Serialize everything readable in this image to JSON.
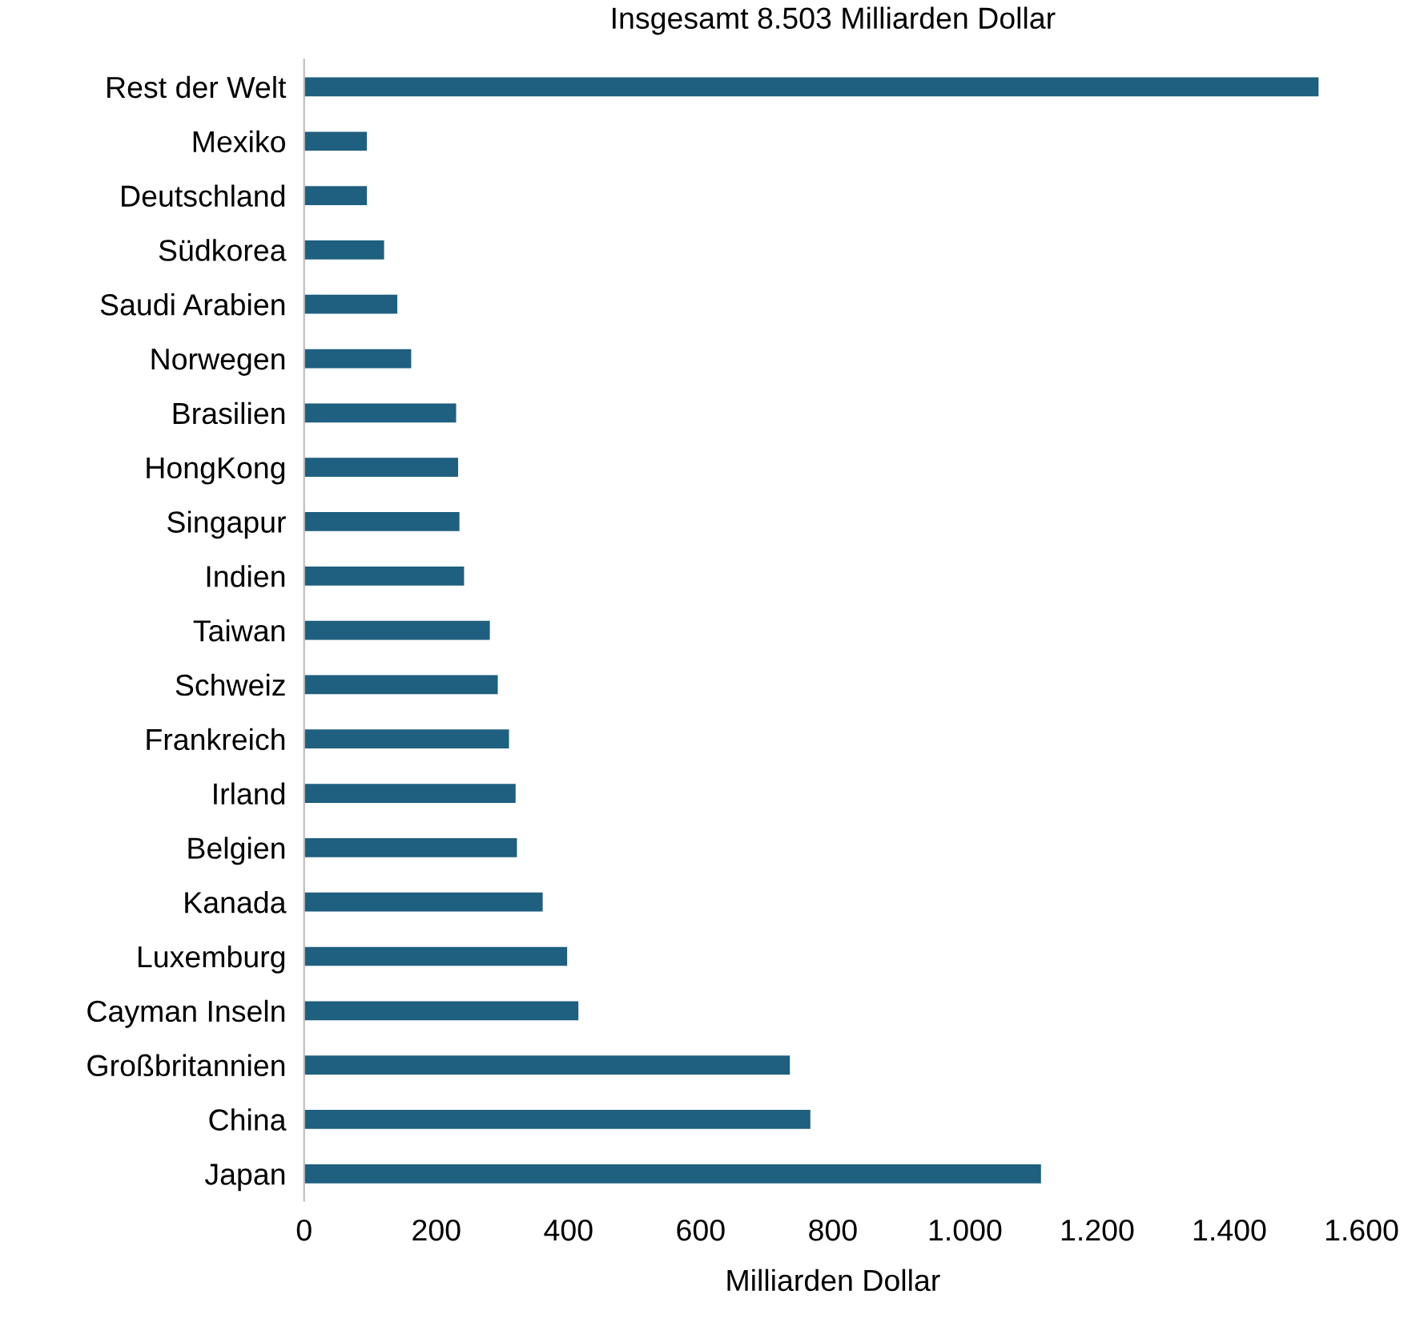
{
  "chart_data": {
    "type": "bar",
    "orientation": "horizontal",
    "title": "Insgesamt 8.503 Milliarden Dollar",
    "xlabel": "Milliarden Dollar",
    "categories": [
      "Rest der Welt",
      "Mexiko",
      "Deutschland",
      "Südkorea",
      "Saudi Arabien",
      "Norwegen",
      "Brasilien",
      "HongKong",
      "Singapur",
      "Indien",
      "Taiwan",
      "Schweiz",
      "Frankreich",
      "Irland",
      "Belgien",
      "Kanada",
      "Luxemburg",
      "Cayman Inseln",
      "Großbritannien",
      "China",
      "Japan"
    ],
    "values": [
      1535,
      95,
      95,
      121,
      141,
      162,
      230,
      233,
      235,
      242,
      281,
      293,
      310,
      320,
      322,
      361,
      398,
      415,
      735,
      766,
      1115
    ],
    "color": "#1f5f7f",
    "xlim": [
      0,
      1600
    ],
    "xticks": [
      0,
      200,
      400,
      600,
      800,
      {
        "value": 1000,
        "label": "1.000"
      },
      {
        "value": 1200,
        "label": "1.200"
      },
      {
        "value": 1400,
        "label": "1.400"
      },
      {
        "value": 1600,
        "label": "1.600"
      }
    ],
    "grid": false,
    "legend": false
  }
}
